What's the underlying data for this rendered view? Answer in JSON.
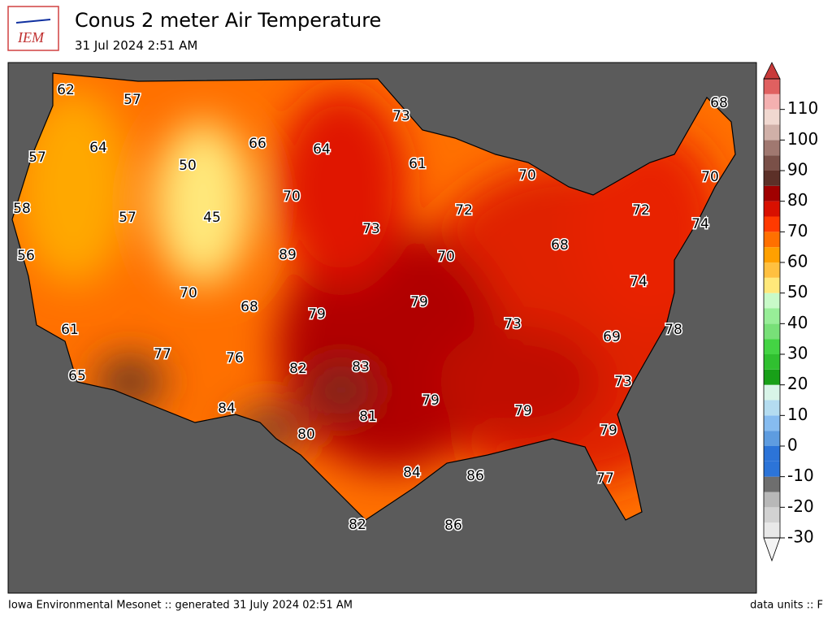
{
  "header": {
    "logo": "IEM",
    "title": "Conus 2 meter Air Temperature",
    "subtitle": "31 Jul 2024 2:51 AM"
  },
  "footer": {
    "left": "Iowa Environmental Mesonet :: generated 31 July 2024 02:51 AM",
    "right": "data units :: F"
  },
  "labels": [
    62,
    57,
    73,
    68,
    57,
    64,
    66,
    64,
    50,
    61,
    70,
    70,
    58,
    57,
    45,
    70,
    72,
    72,
    74,
    73,
    56,
    89,
    70,
    68,
    70,
    68,
    79,
    79,
    74,
    73,
    61,
    77,
    76,
    82,
    83,
    69,
    78,
    65,
    73,
    79,
    84,
    81,
    79,
    79,
    80,
    84,
    86,
    77,
    82,
    86
  ],
  "colorbar": {
    "lim": [
      -30,
      120
    ],
    "ticks": [
      -30,
      -20,
      -10,
      0,
      10,
      20,
      30,
      40,
      50,
      60,
      70,
      80,
      90,
      100,
      110
    ],
    "under_color": "#f4f4f4",
    "over_color": "#c83a3a",
    "colors": [
      "#e8e8e8",
      "#d2d2d2",
      "#b8b8b8",
      "#6e6e6e",
      "#2c74d8",
      "#2c74d8",
      "#5e9ce0",
      "#86bcf0",
      "#b4dcf0",
      "#d8f4e8",
      "#18a018",
      "#30c030",
      "#44d444",
      "#78e078",
      "#98ee98",
      "#c8fac8",
      "#ffe87a",
      "#ffc040",
      "#ffa000",
      "#ff7000",
      "#ff3a00",
      "#d81000",
      "#a00000",
      "#5c3028",
      "#7a5048",
      "#a07870",
      "#d0b0a8",
      "#f0d8d0",
      "#f4b0b0",
      "#e06060"
    ]
  }
}
